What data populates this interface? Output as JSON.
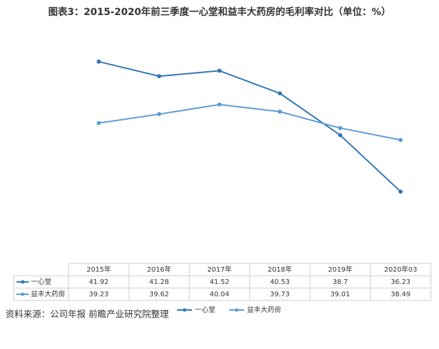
{
  "chart_data": {
    "type": "line",
    "title": "图表3：2015-2020年前三季度一心堂和益丰大药房的毛利率对比（单位：%）",
    "categories": [
      "2015年",
      "2016年",
      "2017年",
      "2018年",
      "2019年",
      "2020年03"
    ],
    "series": [
      {
        "name": "一心堂",
        "color": "#2e75b6",
        "values": [
          41.92,
          41.28,
          41.52,
          40.53,
          38.7,
          36.23
        ]
      },
      {
        "name": "益丰大药房",
        "color": "#5b9bd5",
        "values": [
          39.23,
          39.62,
          40.04,
          39.73,
          39.01,
          38.49
        ]
      }
    ],
    "ylim": [
      35,
      43
    ],
    "source": "资料来源：公司年报 前瞻产业研究院整理"
  }
}
